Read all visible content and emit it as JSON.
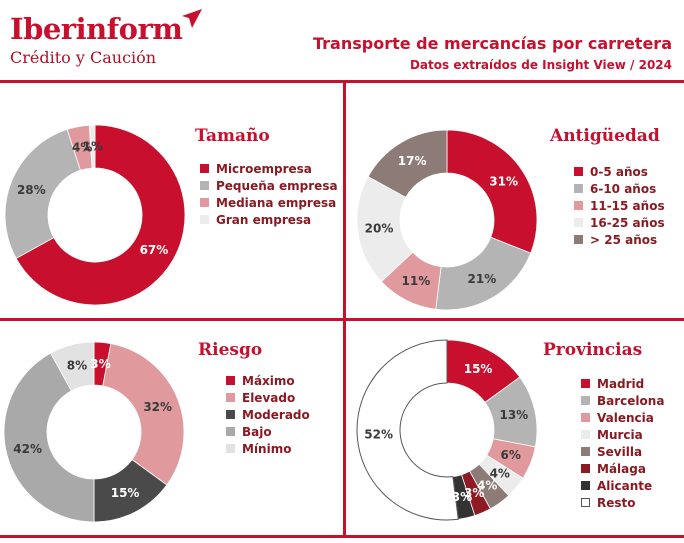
{
  "header": {
    "brand": "Iberinform",
    "brand_sub": "Crédito y Caución",
    "title": "Transporte de mercancías por carretera",
    "subtitle": "Datos extraídos de Insight View / 2024"
  },
  "colors": {
    "accent": "#c8102e",
    "label_dark": "#3a3a3a",
    "label_light": "#ffffff"
  },
  "chart_data": [
    {
      "type": "pie",
      "variant": "donut",
      "title": "Tamaño",
      "categories": [
        "Microempresa",
        "Pequeña empresa",
        "Mediana empresa",
        "Gran empresa"
      ],
      "values": [
        67,
        28,
        4,
        1
      ],
      "labels": [
        "67%",
        "28%",
        "4%",
        "1%"
      ],
      "colors": [
        "#c8102e",
        "#b4b4b4",
        "#e09a9d",
        "#ececec"
      ],
      "legend": "right"
    },
    {
      "type": "pie",
      "variant": "donut",
      "title": "Antigüedad",
      "categories": [
        "0-5 años",
        "6-10 años",
        "11-15 años",
        "16-25 años",
        "> 25 años"
      ],
      "values": [
        31,
        21,
        11,
        20,
        17
      ],
      "labels": [
        "31%",
        "21%",
        "11%",
        "20%",
        "17%"
      ],
      "colors": [
        "#c8102e",
        "#b4b4b4",
        "#e09a9d",
        "#ececec",
        "#8c7b76"
      ],
      "legend": "right"
    },
    {
      "type": "pie",
      "variant": "donut",
      "title": "Riesgo",
      "categories": [
        "Máximo",
        "Elevado",
        "Moderado",
        "Bajo",
        "Mínimo"
      ],
      "values": [
        3,
        32,
        15,
        42,
        8
      ],
      "labels": [
        "3%",
        "32%",
        "15%",
        "42%",
        "8%"
      ],
      "colors": [
        "#c8102e",
        "#e09a9d",
        "#4a4a4a",
        "#a9a9a9",
        "#e2e2e2"
      ],
      "legend": "right"
    },
    {
      "type": "pie",
      "variant": "donut",
      "title": "Provincias",
      "categories": [
        "Madrid",
        "Barcelona",
        "Valencia",
        "Murcia",
        "Sevilla",
        "Málaga",
        "Alicante",
        "Resto"
      ],
      "values": [
        15,
        13,
        6,
        4,
        4,
        3,
        3,
        52
      ],
      "labels": [
        "15%",
        "13%",
        "6%",
        "4%",
        "4%",
        "3%",
        "3%",
        "52%"
      ],
      "colors": [
        "#c8102e",
        "#b4b4b4",
        "#e09a9d",
        "#ececec",
        "#8c7b76",
        "#8e1b24",
        "#333333",
        "#ffffff"
      ],
      "legend": "right"
    }
  ]
}
